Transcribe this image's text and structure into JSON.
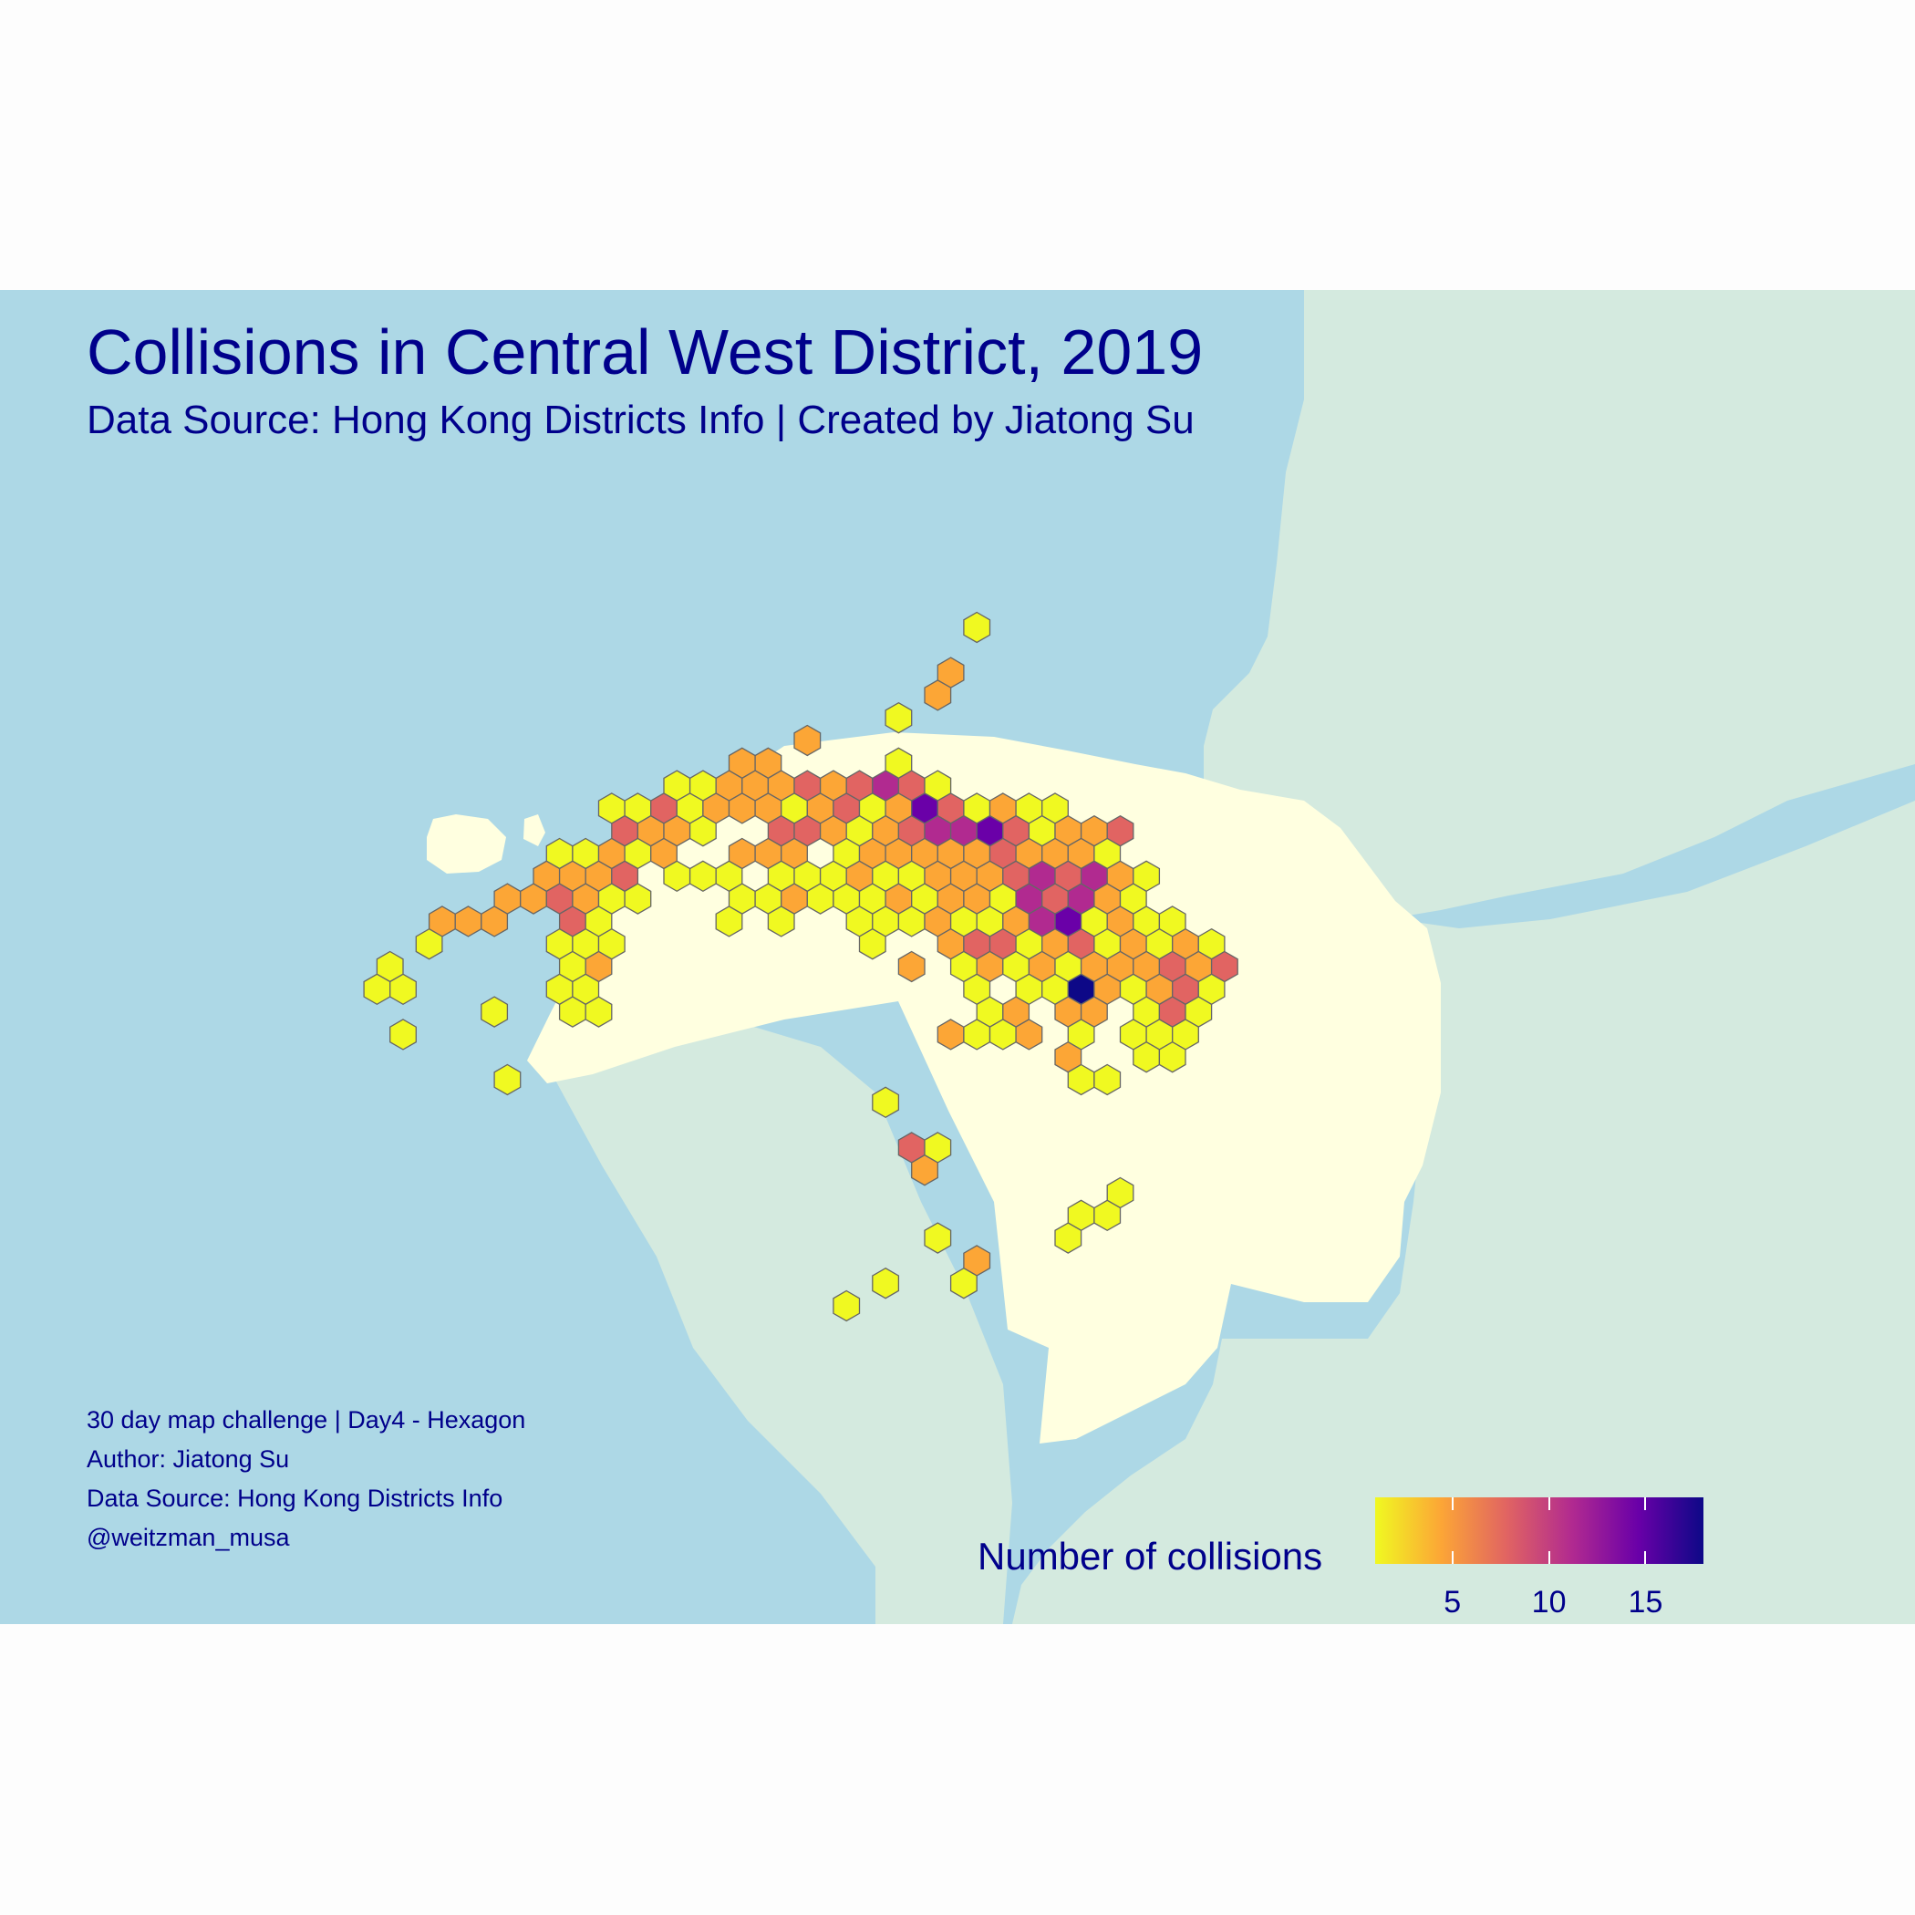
{
  "title": "Collisions in Central West District, 2019",
  "subtitle": "Data Source: Hong Kong Districts Info | Created by Jiatong Su",
  "caption": [
    "30 day map challenge | Day4 - Hexagon",
    "Author: Jiatong Su",
    "Data Source: Hong Kong Districts Info",
    "@weitzman_musa"
  ],
  "legend": {
    "title": "Number of collisions",
    "ticks": [
      "5",
      "10",
      "15"
    ],
    "tick_values": [
      5,
      10,
      15
    ],
    "range": [
      1,
      18
    ],
    "palette": [
      "#f0f921",
      "#fca636",
      "#e16462",
      "#b12a90",
      "#6a00a8",
      "#0d0887"
    ]
  },
  "colors": {
    "water": "#add8e6",
    "district": "#ffffe0",
    "other_land": "#d4eadf",
    "hex_border": "#666666",
    "text": "#00008b"
  }
}
